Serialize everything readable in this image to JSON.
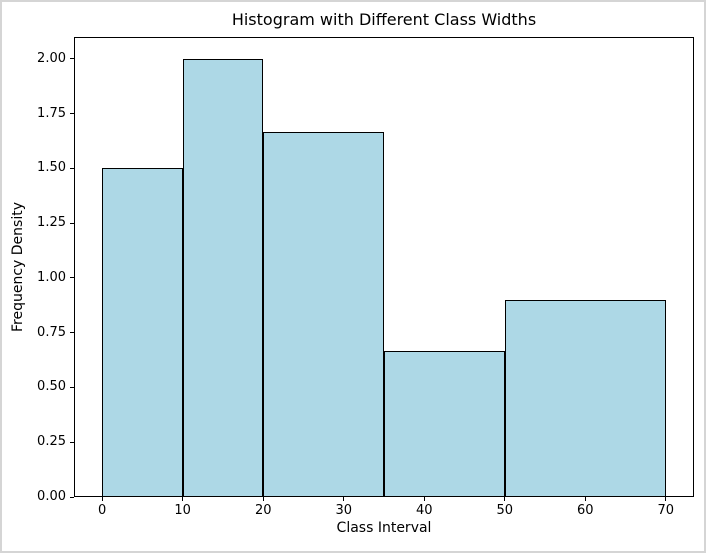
{
  "figure": {
    "background_color": "#ffffff",
    "frame_border_color": "#d5d5d5"
  },
  "chart_data": {
    "type": "bar",
    "title": "Histogram with Different Class Widths",
    "xlabel": "Class Interval",
    "ylabel": "Frequency Density",
    "bars": [
      {
        "interval_start": 0,
        "interval_end": 10,
        "frequency_density": 1.5
      },
      {
        "interval_start": 10,
        "interval_end": 20,
        "frequency_density": 2.0
      },
      {
        "interval_start": 20,
        "interval_end": 35,
        "frequency_density": 1.667
      },
      {
        "interval_start": 35,
        "interval_end": 50,
        "frequency_density": 0.667
      },
      {
        "interval_start": 50,
        "interval_end": 70,
        "frequency_density": 0.9
      }
    ],
    "xticks": [
      "0",
      "10",
      "20",
      "30",
      "40",
      "50",
      "60",
      "70"
    ],
    "yticks": [
      "0.00",
      "0.25",
      "0.50",
      "0.75",
      "1.00",
      "1.25",
      "1.50",
      "1.75",
      "2.00"
    ],
    "xlim": [
      -3.5,
      73.5
    ],
    "ylim": [
      0,
      2.1
    ],
    "bar_fill_color": "#ADD8E6",
    "bar_edge_color": "#000000",
    "axes_color": "#000000",
    "grid": false
  }
}
